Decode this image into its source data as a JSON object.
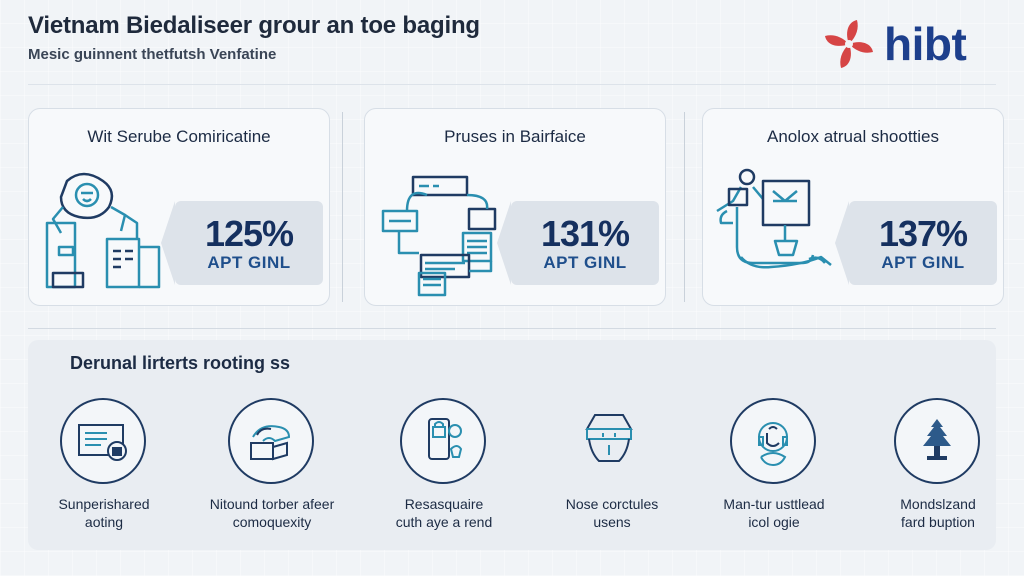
{
  "header": {
    "title": "Vietnam Biedaliseer grour an toe baging",
    "subtitle": "Mesic guinnent thetfutsh Venfatine",
    "logo_text": "hibt",
    "logo_color": "#1d3f8c",
    "logo_mark_color": "#d64545"
  },
  "cards": [
    {
      "title": "Wit Serube Comiricatine",
      "stat_value": "125%",
      "stat_label": "APT GINL",
      "icon": "worker-at-machine-icon"
    },
    {
      "title": "Pruses in Bairfaice",
      "stat_value": "131%",
      "stat_label": "APT GINL",
      "icon": "device-network-icon"
    },
    {
      "title": "Anolox atrual shootties",
      "stat_value": "137%",
      "stat_label": "APT GINL",
      "icon": "robot-arm-icon"
    }
  ],
  "panel": {
    "title": "Derunal lirterts rooting ss",
    "features": [
      {
        "line1": "Sunperishared",
        "line2": "aoting",
        "icon": "document-card-icon"
      },
      {
        "line1": "Nitound torber afeer",
        "line2": "comoquexity",
        "icon": "hand-box-icon"
      },
      {
        "line1": "Resasquaire",
        "line2": "cuth aye a rend",
        "icon": "phone-lock-icon"
      },
      {
        "line1": "Nose corctules",
        "line2": "usens",
        "icon": "lantern-icon"
      },
      {
        "line1": "Man-tur usttlead",
        "line2": "icol ogie",
        "icon": "headset-person-icon"
      },
      {
        "line1": "Mondslzand",
        "line2": "fard buption",
        "icon": "tree-icon"
      }
    ]
  },
  "colors": {
    "accent": "#2a8fb0",
    "dark": "#1f3b63",
    "stat_bg": "#dde3ea",
    "background": "#f1f4f7"
  }
}
